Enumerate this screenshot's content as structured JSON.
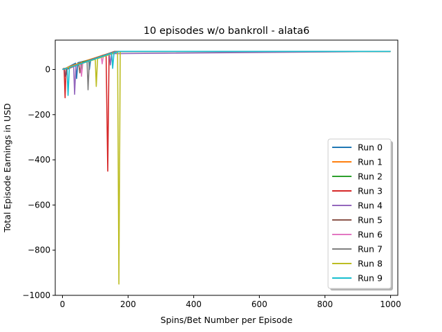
{
  "chart_data": {
    "type": "line",
    "title": "10 episodes w/o bankroll - alata6",
    "xlabel": "Spins/Bet Number per Episode",
    "ylabel": "Total Episode Earnings in USD",
    "xlim": [
      -22,
      1022
    ],
    "ylim": [
      -1000,
      130
    ],
    "xticks": [
      0,
      200,
      400,
      600,
      800,
      1000
    ],
    "yticks": [
      -1000,
      -800,
      -600,
      -400,
      -200,
      0
    ],
    "ytick_labels": [
      "−1000",
      "−800",
      "−600",
      "−400",
      "−200",
      "0"
    ],
    "legend_position": "lower right",
    "grid": false,
    "final_value": 80,
    "series": [
      {
        "name": "Run 0",
        "color": "#1f77b4",
        "x": [
          0,
          5,
          9,
          12,
          16,
          40,
          43,
          47,
          80,
          82,
          86,
          165,
          1000
        ],
        "y": [
          0,
          5,
          -30,
          -20,
          10,
          28,
          -40,
          30,
          42,
          0,
          45,
          80,
          80
        ]
      },
      {
        "name": "Run 1",
        "color": "#ff7f0e",
        "x": [
          0,
          20,
          40,
          70,
          100,
          125,
          150,
          170,
          1000
        ],
        "y": [
          0,
          12,
          22,
          38,
          52,
          64,
          74,
          80,
          80
        ]
      },
      {
        "name": "Run 2",
        "color": "#2ca02c",
        "x": [
          0,
          35,
          55,
          58,
          61,
          90,
          115,
          165,
          1000
        ],
        "y": [
          0,
          14,
          28,
          -20,
          32,
          45,
          58,
          80,
          80
        ]
      },
      {
        "name": "Run 3",
        "color": "#d62728",
        "x": [
          0,
          5,
          8,
          11,
          60,
          95,
          133,
          138,
          142,
          170,
          1000
        ],
        "y": [
          0,
          5,
          -125,
          0,
          28,
          45,
          62,
          -450,
          65,
          80,
          80
        ]
      },
      {
        "name": "Run 4",
        "color": "#9467bd",
        "x": [
          0,
          34,
          37,
          41,
          100,
          143,
          146,
          150,
          1000
        ],
        "y": [
          0,
          16,
          -110,
          18,
          50,
          68,
          20,
          70,
          80
        ]
      },
      {
        "name": "Run 5",
        "color": "#8c564b",
        "x": [
          0,
          50,
          53,
          57,
          100,
          158,
          1000
        ],
        "y": [
          0,
          22,
          -15,
          25,
          50,
          80,
          80
        ]
      },
      {
        "name": "Run 6",
        "color": "#e377c2",
        "x": [
          0,
          55,
          58,
          62,
          118,
          121,
          125,
          168,
          1000
        ],
        "y": [
          0,
          25,
          -30,
          28,
          58,
          25,
          62,
          80,
          80
        ]
      },
      {
        "name": "Run 7",
        "color": "#7f7f7f",
        "x": [
          0,
          75,
          78,
          82,
          160,
          1000
        ],
        "y": [
          0,
          35,
          -90,
          38,
          80,
          80
        ]
      },
      {
        "name": "Run 8",
        "color": "#bcbd22",
        "x": [
          0,
          100,
          103,
          107,
          168,
          172,
          176,
          180,
          1000
        ],
        "y": [
          0,
          45,
          -75,
          48,
          78,
          -950,
          78,
          80,
          80
        ]
      },
      {
        "name": "Run 9",
        "color": "#17becf",
        "x": [
          0,
          14,
          17,
          21,
          150,
          153,
          157,
          175,
          1000
        ],
        "y": [
          0,
          6,
          -115,
          8,
          72,
          5,
          74,
          80,
          80
        ]
      }
    ]
  }
}
